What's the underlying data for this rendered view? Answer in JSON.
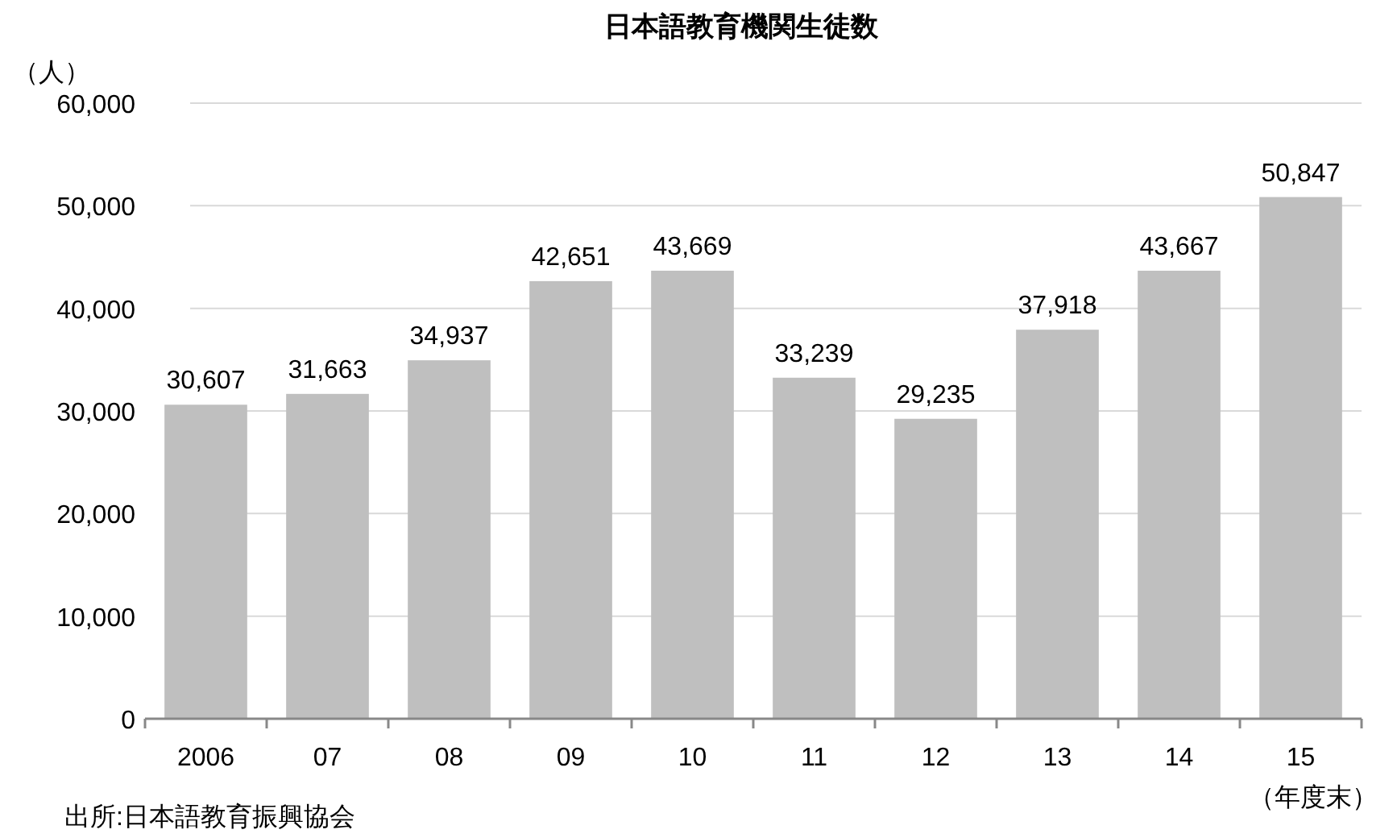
{
  "chart_data": {
    "type": "bar",
    "title": "日本語教育機関生徒数",
    "ylabel": "（人）",
    "categories": [
      "2006",
      "07",
      "08",
      "09",
      "10",
      "11",
      "12",
      "13",
      "14",
      "15"
    ],
    "values": [
      30607,
      31663,
      34937,
      42651,
      43669,
      33239,
      29235,
      37918,
      43667,
      50847
    ],
    "color": "#bfbfbf",
    "ylim": [
      0,
      60000
    ],
    "yticks": [
      {
        "value": 0,
        "label": "0"
      },
      {
        "value": 10000,
        "label": "10,000"
      },
      {
        "value": 20000,
        "label": "20,000"
      },
      {
        "value": 30000,
        "label": "30,000"
      },
      {
        "value": 40000,
        "label": "40,000"
      },
      {
        "value": 50000,
        "label": "50,000"
      },
      {
        "value": 60000,
        "label": "60,000"
      }
    ],
    "value_labels": [
      "30,607",
      "31,663",
      "34,937",
      "42,651",
      "43,669",
      "33,239",
      "29,235",
      "37,918",
      "43,667",
      "50,847"
    ],
    "grid": "y",
    "annotations": [
      "出所:日本語教育振興協会",
      "（年度末）"
    ]
  }
}
